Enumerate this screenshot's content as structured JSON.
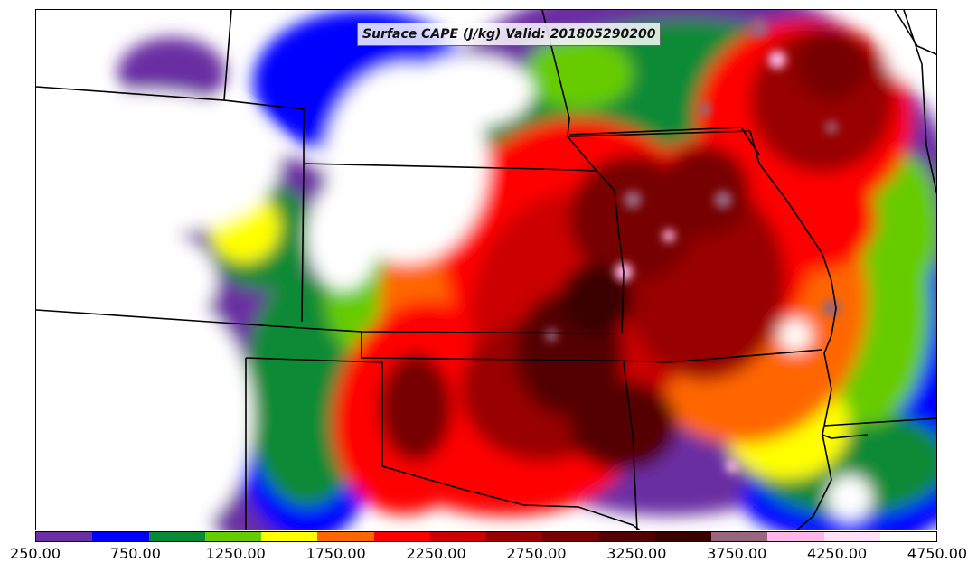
{
  "title": "Surface CAPE (J/kg) Valid: 201805290200",
  "colorbar": {
    "units": "J/kg",
    "min": 250,
    "max": 4750,
    "ticks": [
      "250.00",
      "750.00",
      "1250.00",
      "1750.00",
      "2250.00",
      "2750.00",
      "3250.00",
      "3750.00",
      "4250.00",
      "4750.00"
    ],
    "colors": [
      "#6a2fa3",
      "#0000ff",
      "#0a8a35",
      "#66cc00",
      "#ffff00",
      "#ff6600",
      "#ff0000",
      "#cc0000",
      "#990000",
      "#770000",
      "#550000",
      "#3a0000",
      "#996680",
      "#ffb6e6",
      "#ffe0f5",
      "#ffffff"
    ]
  },
  "features": {
    "highest_values_region": "Kansas / Oklahoma / Missouri",
    "boundaries": "U.S. state outlines"
  }
}
